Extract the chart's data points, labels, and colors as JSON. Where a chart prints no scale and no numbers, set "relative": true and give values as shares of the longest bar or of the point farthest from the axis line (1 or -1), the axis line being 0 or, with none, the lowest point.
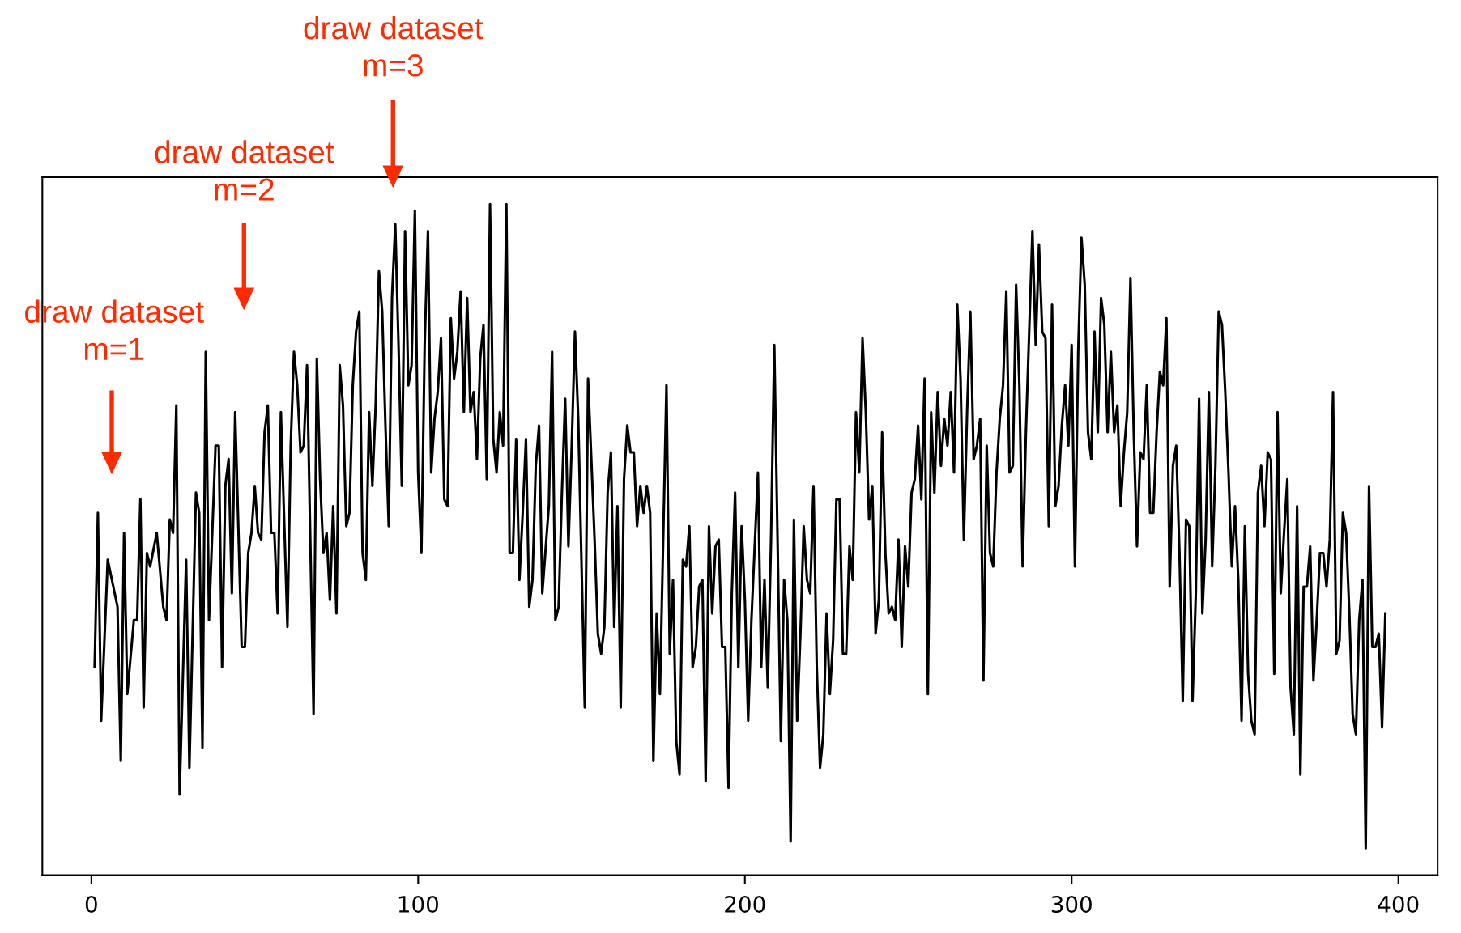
{
  "chart_data": {
    "type": "line",
    "relative": true,
    "color": "#000000",
    "marker": "none",
    "line_style": "solid",
    "grid": false,
    "legend": false,
    "xlim": [
      -15,
      412
    ],
    "xticks": [
      0,
      100,
      200,
      300,
      400
    ],
    "annotations": [
      "draw dataset\nm=1",
      "draw dataset\nm=2",
      "draw dataset\nm=3"
    ],
    "x": [
      1,
      2,
      3,
      5,
      8,
      9,
      10,
      11,
      13,
      14,
      15,
      16,
      17,
      18,
      20,
      22,
      23,
      24,
      25,
      26,
      27,
      29,
      30,
      32,
      33,
      34,
      35,
      36,
      38,
      39,
      40,
      41,
      42,
      43,
      44,
      46,
      47,
      48,
      49,
      50,
      51,
      52,
      53,
      54,
      55,
      56,
      57,
      58,
      60,
      61,
      62,
      63,
      64,
      65,
      66,
      68,
      69,
      70,
      71,
      72,
      73,
      74,
      75,
      76,
      77,
      78,
      79,
      80,
      81,
      82,
      83,
      84,
      85,
      86,
      87,
      88,
      89,
      90,
      91,
      92,
      93,
      94,
      95,
      96,
      97,
      98,
      99,
      100,
      101,
      102,
      103,
      104,
      105,
      106,
      107,
      108,
      109,
      110,
      111,
      112,
      113,
      114,
      115,
      116,
      117,
      118,
      119,
      120,
      121,
      122,
      123,
      124,
      125,
      126,
      127,
      128,
      129,
      130,
      131,
      132,
      133,
      134,
      135,
      136,
      137,
      138,
      140,
      141,
      142,
      143,
      144,
      145,
      146,
      147,
      148,
      149,
      151,
      152,
      153,
      154,
      155,
      156,
      157,
      158,
      159,
      160,
      161,
      162,
      163,
      164,
      165,
      166,
      167,
      168,
      169,
      170,
      171,
      172,
      173,
      174,
      176,
      177,
      178,
      179,
      180,
      181,
      182,
      183,
      184,
      185,
      186,
      187,
      188,
      189,
      190,
      191,
      192,
      193,
      194,
      195,
      196,
      197,
      198,
      199,
      200,
      201,
      202,
      203,
      204,
      205,
      206,
      207,
      208,
      209,
      210,
      211,
      212,
      213,
      214,
      215,
      216,
      217,
      218,
      219,
      220,
      221,
      222,
      223,
      224,
      225,
      226,
      227,
      228,
      229,
      230,
      231,
      232,
      233,
      234,
      235,
      236,
      237,
      238,
      239,
      240,
      241,
      242,
      243,
      244,
      245,
      246,
      247,
      248,
      249,
      250,
      251,
      252,
      253,
      254,
      255,
      256,
      257,
      258,
      259,
      260,
      261,
      262,
      263,
      264,
      265,
      266,
      267,
      268,
      269,
      270,
      271,
      272,
      273,
      274,
      275,
      276,
      277,
      278,
      279,
      280,
      281,
      282,
      283,
      284,
      285,
      286,
      287,
      288,
      289,
      290,
      291,
      292,
      293,
      294,
      295,
      296,
      297,
      298,
      299,
      300,
      301,
      302,
      303,
      304,
      305,
      306,
      307,
      308,
      309,
      310,
      311,
      312,
      313,
      314,
      315,
      316,
      317,
      318,
      319,
      320,
      321,
      322,
      323,
      324,
      325,
      326,
      327,
      328,
      329,
      330,
      331,
      332,
      333,
      334,
      335,
      336,
      337,
      338,
      339,
      340,
      341,
      342,
      343,
      344,
      345,
      346,
      347,
      348,
      349,
      350,
      351,
      352,
      353,
      354,
      355,
      356,
      357,
      358,
      359,
      360,
      361,
      362,
      363,
      364,
      365,
      366,
      367,
      368,
      369,
      370,
      371,
      372,
      373,
      374,
      375,
      376,
      377,
      378,
      379,
      380,
      381,
      382,
      383,
      384,
      385,
      386,
      387,
      388,
      389,
      390,
      391,
      392,
      393,
      394,
      395,
      396
    ],
    "values": [
      0.31,
      0.54,
      0.23,
      0.47,
      0.4,
      0.17,
      0.51,
      0.27,
      0.38,
      0.38,
      0.56,
      0.25,
      0.48,
      0.46,
      0.51,
      0.4,
      0.38,
      0.53,
      0.51,
      0.7,
      0.12,
      0.47,
      0.16,
      0.57,
      0.54,
      0.19,
      0.78,
      0.38,
      0.64,
      0.64,
      0.31,
      0.58,
      0.62,
      0.42,
      0.69,
      0.34,
      0.34,
      0.48,
      0.51,
      0.58,
      0.51,
      0.5,
      0.66,
      0.7,
      0.51,
      0.51,
      0.39,
      0.69,
      0.37,
      0.64,
      0.78,
      0.73,
      0.63,
      0.64,
      0.76,
      0.24,
      0.77,
      0.59,
      0.48,
      0.51,
      0.41,
      0.55,
      0.39,
      0.76,
      0.7,
      0.52,
      0.54,
      0.73,
      0.81,
      0.84,
      0.48,
      0.44,
      0.69,
      0.58,
      0.7,
      0.9,
      0.84,
      0.67,
      0.52,
      0.86,
      0.97,
      0.79,
      0.58,
      0.96,
      0.73,
      0.76,
      0.99,
      0.6,
      0.48,
      0.79,
      0.96,
      0.6,
      0.68,
      0.72,
      0.8,
      0.56,
      0.55,
      0.83,
      0.74,
      0.78,
      0.87,
      0.69,
      0.86,
      0.69,
      0.72,
      0.62,
      0.77,
      0.82,
      0.59,
      1.0,
      0.65,
      0.6,
      0.69,
      0.64,
      1.0,
      0.48,
      0.48,
      0.65,
      0.44,
      0.54,
      0.65,
      0.4,
      0.44,
      0.61,
      0.67,
      0.42,
      0.55,
      0.78,
      0.38,
      0.4,
      0.57,
      0.71,
      0.49,
      0.64,
      0.81,
      0.68,
      0.25,
      0.74,
      0.62,
      0.5,
      0.36,
      0.33,
      0.37,
      0.57,
      0.63,
      0.37,
      0.55,
      0.25,
      0.59,
      0.67,
      0.63,
      0.63,
      0.52,
      0.58,
      0.54,
      0.58,
      0.54,
      0.17,
      0.39,
      0.27,
      0.73,
      0.33,
      0.44,
      0.2,
      0.15,
      0.47,
      0.46,
      0.52,
      0.31,
      0.34,
      0.43,
      0.44,
      0.14,
      0.52,
      0.39,
      0.49,
      0.5,
      0.34,
      0.34,
      0.13,
      0.42,
      0.57,
      0.31,
      0.52,
      0.41,
      0.23,
      0.38,
      0.49,
      0.6,
      0.31,
      0.44,
      0.28,
      0.5,
      0.79,
      0.5,
      0.2,
      0.44,
      0.38,
      0.05,
      0.53,
      0.23,
      0.36,
      0.52,
      0.44,
      0.42,
      0.58,
      0.31,
      0.16,
      0.21,
      0.39,
      0.27,
      0.35,
      0.56,
      0.56,
      0.33,
      0.33,
      0.49,
      0.44,
      0.69,
      0.6,
      0.8,
      0.69,
      0.53,
      0.58,
      0.36,
      0.41,
      0.66,
      0.48,
      0.39,
      0.4,
      0.38,
      0.5,
      0.34,
      0.49,
      0.43,
      0.57,
      0.59,
      0.67,
      0.56,
      0.74,
      0.27,
      0.69,
      0.57,
      0.72,
      0.61,
      0.68,
      0.64,
      0.72,
      0.6,
      0.85,
      0.74,
      0.5,
      0.69,
      0.84,
      0.62,
      0.64,
      0.68,
      0.29,
      0.64,
      0.48,
      0.46,
      0.6,
      0.68,
      0.73,
      0.87,
      0.6,
      0.61,
      0.88,
      0.73,
      0.46,
      0.66,
      0.81,
      0.96,
      0.79,
      0.94,
      0.81,
      0.8,
      0.52,
      0.85,
      0.55,
      0.58,
      0.67,
      0.73,
      0.64,
      0.79,
      0.46,
      0.78,
      0.95,
      0.88,
      0.66,
      0.62,
      0.81,
      0.66,
      0.86,
      0.82,
      0.66,
      0.78,
      0.66,
      0.7,
      0.55,
      0.63,
      0.69,
      0.89,
      0.66,
      0.49,
      0.63,
      0.62,
      0.73,
      0.54,
      0.54,
      0.66,
      0.75,
      0.73,
      0.83,
      0.43,
      0.61,
      0.64,
      0.48,
      0.26,
      0.53,
      0.52,
      0.26,
      0.42,
      0.71,
      0.39,
      0.5,
      0.72,
      0.46,
      0.61,
      0.84,
      0.82,
      0.72,
      0.6,
      0.46,
      0.55,
      0.44,
      0.23,
      0.52,
      0.3,
      0.23,
      0.21,
      0.57,
      0.61,
      0.52,
      0.63,
      0.62,
      0.3,
      0.69,
      0.42,
      0.51,
      0.59,
      0.28,
      0.21,
      0.55,
      0.15,
      0.43,
      0.43,
      0.49,
      0.29,
      0.38,
      0.48,
      0.48,
      0.43,
      0.5,
      0.72,
      0.33,
      0.35,
      0.54,
      0.51,
      0.39,
      0.24,
      0.21,
      0.38,
      0.44,
      0.04,
      0.58,
      0.34,
      0.34,
      0.36,
      0.22,
      0.39
    ]
  }
}
